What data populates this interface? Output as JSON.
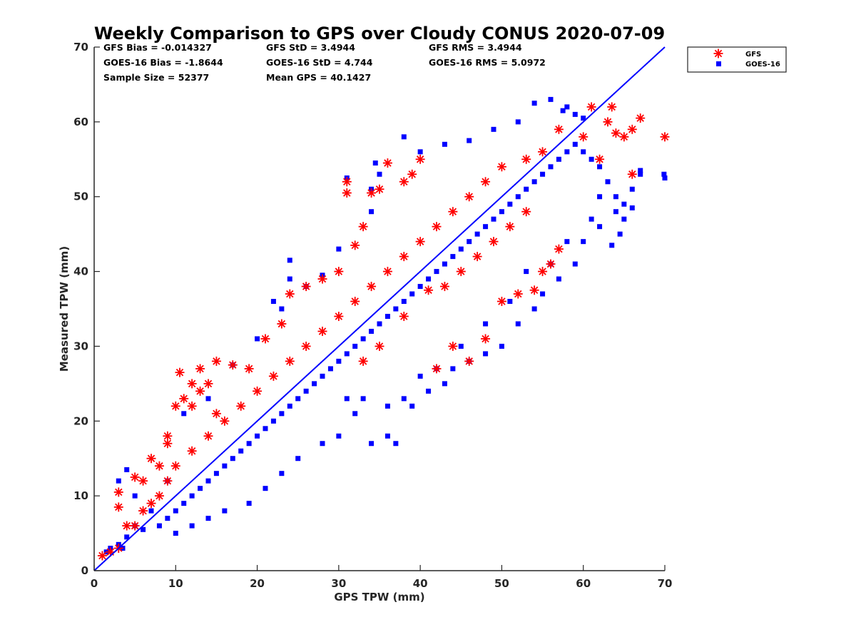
{
  "colors": {
    "gfs": "#ff0000",
    "goes": "#0000ff",
    "axis": "#262626",
    "line": "#0000ff"
  },
  "stats": {
    "gfs_bias": "GFS Bias = -0.014327",
    "gfs_std": "GFS StD = 3.4944",
    "gfs_rms": "GFS RMS = 3.4944",
    "goes_bias": "GOES-16 Bias = -1.8644",
    "goes_std": "GOES-16 StD = 4.744",
    "goes_rms": "GOES-16 RMS = 5.0972",
    "sample_size": "Sample Size = 52377",
    "mean_gps": "Mean GPS = 40.1427"
  },
  "chart_data": {
    "type": "scatter",
    "title": "Weekly Comparison to GPS over Cloudy CONUS 2020-07-09",
    "xlabel": "GPS TPW (mm)",
    "ylabel": "Measured TPW (mm)",
    "xlim": [
      0,
      70
    ],
    "ylim": [
      0,
      70
    ],
    "xticks": [
      "0",
      "10",
      "20",
      "30",
      "40",
      "50",
      "60",
      "70"
    ],
    "yticks": [
      "0",
      "10",
      "20",
      "30",
      "40",
      "50",
      "60",
      "70"
    ],
    "grid": false,
    "legend": {
      "placement": "outside top-right",
      "entries": [
        "GFS",
        "GOES-16"
      ]
    },
    "reference_line": {
      "from": [
        0,
        0
      ],
      "to": [
        70,
        70
      ]
    },
    "series": [
      {
        "name": "GOES-16",
        "marker": "square",
        "points": [
          [
            1.5,
            2.5
          ],
          [
            2,
            3
          ],
          [
            3,
            3.5
          ],
          [
            4,
            4.5
          ],
          [
            3.5,
            3
          ],
          [
            5,
            6
          ],
          [
            6,
            5.5
          ],
          [
            7,
            8
          ],
          [
            8,
            6
          ],
          [
            9,
            7
          ],
          [
            10,
            8
          ],
          [
            11,
            9
          ],
          [
            12,
            10
          ],
          [
            13,
            11
          ],
          [
            14,
            12
          ],
          [
            15,
            13
          ],
          [
            16,
            14
          ],
          [
            17,
            15
          ],
          [
            18,
            16
          ],
          [
            19,
            17
          ],
          [
            20,
            18
          ],
          [
            21,
            19
          ],
          [
            22,
            20
          ],
          [
            23,
            21
          ],
          [
            24,
            22
          ],
          [
            25,
            23
          ],
          [
            26,
            24
          ],
          [
            27,
            25
          ],
          [
            28,
            26
          ],
          [
            29,
            27
          ],
          [
            30,
            28
          ],
          [
            31,
            29
          ],
          [
            32,
            30
          ],
          [
            33,
            31
          ],
          [
            34,
            32
          ],
          [
            35,
            33
          ],
          [
            36,
            34
          ],
          [
            37,
            35
          ],
          [
            38,
            36
          ],
          [
            39,
            37
          ],
          [
            40,
            38
          ],
          [
            41,
            39
          ],
          [
            42,
            40
          ],
          [
            43,
            41
          ],
          [
            44,
            42
          ],
          [
            45,
            43
          ],
          [
            46,
            44
          ],
          [
            47,
            45
          ],
          [
            48,
            46
          ],
          [
            49,
            47
          ],
          [
            50,
            48
          ],
          [
            51,
            49
          ],
          [
            52,
            50
          ],
          [
            53,
            51
          ],
          [
            54,
            52
          ],
          [
            55,
            53
          ],
          [
            56,
            54
          ],
          [
            57,
            55
          ],
          [
            58,
            56
          ],
          [
            59,
            57
          ],
          [
            60,
            56
          ],
          [
            61,
            55
          ],
          [
            62,
            54
          ],
          [
            63,
            52
          ],
          [
            64,
            50
          ],
          [
            65,
            49
          ],
          [
            66,
            51
          ],
          [
            67,
            53
          ],
          [
            70,
            52.5
          ],
          [
            69.9,
            53
          ],
          [
            4,
            13.5
          ],
          [
            3,
            12
          ],
          [
            5,
            10
          ],
          [
            9,
            12
          ],
          [
            11,
            21
          ],
          [
            14,
            23
          ],
          [
            17,
            27.5
          ],
          [
            20,
            31
          ],
          [
            23,
            35
          ],
          [
            24,
            41.5
          ],
          [
            24,
            39
          ],
          [
            22,
            36
          ],
          [
            26,
            38
          ],
          [
            28,
            39.5
          ],
          [
            30,
            43
          ],
          [
            34,
            48
          ],
          [
            35,
            53
          ],
          [
            34.5,
            54.5
          ],
          [
            31,
            52.5
          ],
          [
            34,
            51
          ],
          [
            38,
            58
          ],
          [
            40,
            56
          ],
          [
            43,
            57
          ],
          [
            46,
            57.5
          ],
          [
            49,
            59
          ],
          [
            52,
            60
          ],
          [
            54,
            62.5
          ],
          [
            56,
            63
          ],
          [
            57.5,
            61.5
          ],
          [
            58,
            62
          ],
          [
            59,
            61
          ],
          [
            60,
            60.5
          ],
          [
            63.5,
            43.5
          ],
          [
            64,
            48
          ],
          [
            61,
            47
          ],
          [
            62,
            50
          ],
          [
            65,
            47
          ],
          [
            64.5,
            45
          ],
          [
            66,
            48.5
          ],
          [
            67,
            53.5
          ],
          [
            10,
            5
          ],
          [
            12,
            6
          ],
          [
            14,
            7
          ],
          [
            16,
            8
          ],
          [
            19,
            9
          ],
          [
            21,
            11
          ],
          [
            23,
            13
          ],
          [
            25,
            15
          ],
          [
            28,
            17
          ],
          [
            30,
            18
          ],
          [
            32,
            21
          ],
          [
            34,
            17
          ],
          [
            36,
            18
          ],
          [
            37,
            17
          ],
          [
            39,
            22
          ],
          [
            41,
            24
          ],
          [
            43,
            25
          ],
          [
            44,
            27
          ],
          [
            46,
            28
          ],
          [
            48,
            29
          ],
          [
            50,
            30
          ],
          [
            52,
            33
          ],
          [
            54,
            35
          ],
          [
            55,
            37
          ],
          [
            57,
            39
          ],
          [
            59,
            41
          ],
          [
            60,
            44
          ],
          [
            62,
            46
          ],
          [
            58,
            44
          ],
          [
            56,
            41
          ],
          [
            53,
            40
          ],
          [
            51,
            36
          ],
          [
            48,
            33
          ],
          [
            45,
            30
          ],
          [
            42,
            27
          ],
          [
            40,
            26
          ],
          [
            38,
            23
          ],
          [
            36,
            22
          ],
          [
            33,
            23
          ],
          [
            31,
            23
          ]
        ]
      },
      {
        "name": "GFS",
        "marker": "asterisk",
        "points": [
          [
            1,
            2
          ],
          [
            2,
            2.5
          ],
          [
            3,
            8.5
          ],
          [
            3,
            10.5
          ],
          [
            3,
            3
          ],
          [
            4,
            6
          ],
          [
            5,
            12.5
          ],
          [
            6,
            12
          ],
          [
            7,
            15
          ],
          [
            8,
            14
          ],
          [
            9,
            18
          ],
          [
            9,
            17
          ],
          [
            10,
            22
          ],
          [
            10.5,
            26.5
          ],
          [
            12,
            25
          ],
          [
            13,
            27
          ],
          [
            15,
            28
          ],
          [
            17,
            27.5
          ],
          [
            19,
            27
          ],
          [
            21,
            31
          ],
          [
            23,
            33
          ],
          [
            24,
            37
          ],
          [
            26,
            38
          ],
          [
            28,
            39
          ],
          [
            30,
            40
          ],
          [
            32,
            43.5
          ],
          [
            33,
            46
          ],
          [
            34,
            50.5
          ],
          [
            35,
            51
          ],
          [
            31,
            52
          ],
          [
            31,
            50.5
          ],
          [
            36,
            54.5
          ],
          [
            38,
            52
          ],
          [
            39,
            53
          ],
          [
            40,
            55
          ],
          [
            61,
            62
          ],
          [
            63.5,
            62
          ],
          [
            63,
            60
          ],
          [
            64,
            58.5
          ],
          [
            65,
            58
          ],
          [
            66,
            59
          ],
          [
            67,
            60.5
          ],
          [
            70,
            58
          ],
          [
            66,
            53
          ],
          [
            62,
            55
          ],
          [
            60,
            58
          ],
          [
            57,
            59
          ],
          [
            55,
            56
          ],
          [
            53,
            55
          ],
          [
            50,
            54
          ],
          [
            48,
            52
          ],
          [
            46,
            50
          ],
          [
            44,
            48
          ],
          [
            42,
            46
          ],
          [
            40,
            44
          ],
          [
            38,
            42
          ],
          [
            36,
            40
          ],
          [
            34,
            38
          ],
          [
            32,
            36
          ],
          [
            30,
            34
          ],
          [
            28,
            32
          ],
          [
            26,
            30
          ],
          [
            24,
            28
          ],
          [
            22,
            26
          ],
          [
            20,
            24
          ],
          [
            18,
            22
          ],
          [
            16,
            20
          ],
          [
            14,
            18
          ],
          [
            12,
            16
          ],
          [
            10,
            14
          ],
          [
            41,
            37.5
          ],
          [
            43,
            38
          ],
          [
            46,
            28
          ],
          [
            48,
            31
          ],
          [
            50,
            36
          ],
          [
            52,
            37
          ],
          [
            54,
            37.5
          ],
          [
            55,
            40
          ],
          [
            56,
            41
          ],
          [
            57,
            43
          ],
          [
            45,
            40
          ],
          [
            47,
            42
          ],
          [
            49,
            44
          ],
          [
            51,
            46
          ],
          [
            53,
            48
          ],
          [
            42,
            27
          ],
          [
            44,
            30
          ],
          [
            38,
            34
          ],
          [
            35,
            30
          ],
          [
            33,
            28
          ],
          [
            14,
            25
          ],
          [
            13,
            24
          ],
          [
            11,
            23
          ],
          [
            12,
            22
          ],
          [
            15,
            21
          ],
          [
            8,
            10
          ],
          [
            9,
            12
          ],
          [
            6,
            8
          ],
          [
            7,
            9
          ],
          [
            5,
            6
          ]
        ]
      }
    ]
  }
}
